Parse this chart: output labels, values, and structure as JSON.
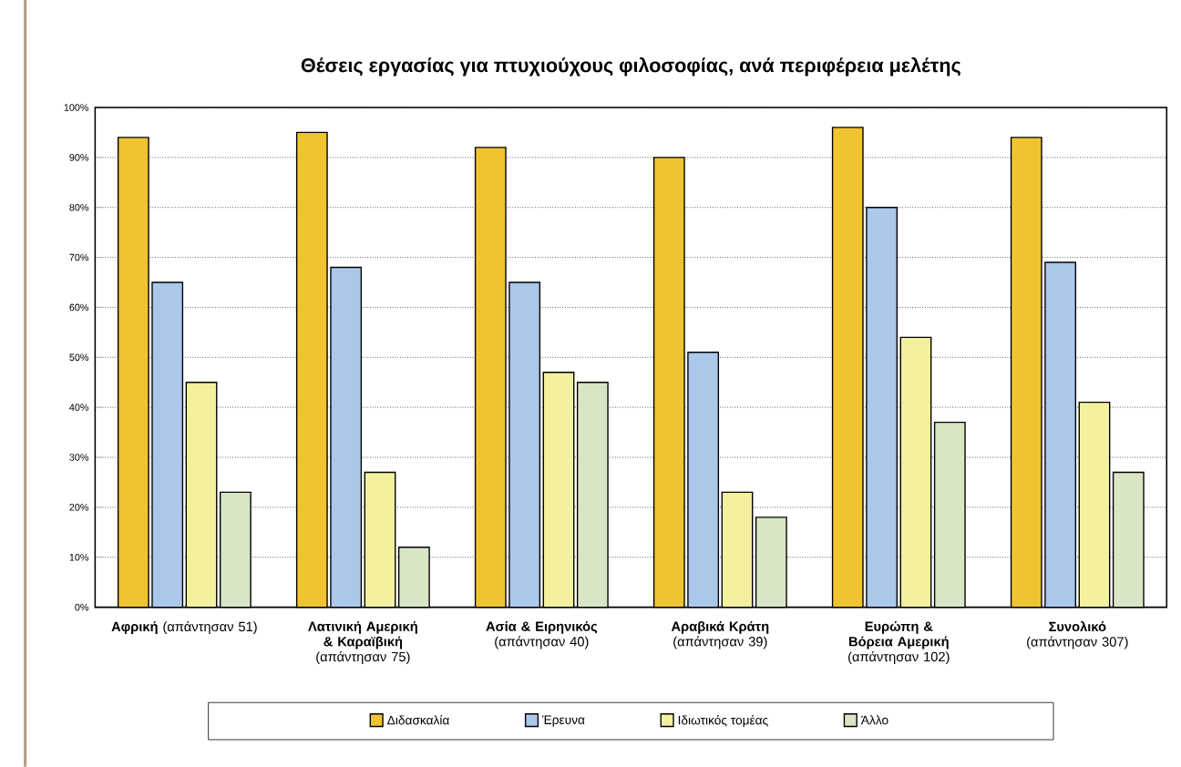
{
  "chart_data": {
    "type": "bar",
    "title": "Θέσεις εργασίας για πτυχιούχους φιλοσοφίας, ανά περιφέρεια μελέτης",
    "categories": [
      "**Αφρική** (απάντησαν 51)",
      "**Λατινική Αμερική & Καραϊβική** (απάντησαν 75)",
      "**Ασία & Ειρηνικός** (απάντησαν 40)",
      "**Αραβικά Κράτη** (απάντησαν 39)",
      "**Ευρώπη & Βόρεια Αμερική** (απάντησαν 102)",
      "**Συνολικό** (απάντησαν 307)"
    ],
    "series": [
      {
        "name": "Διδασκαλία",
        "color": "#f0c430",
        "values": [
          94,
          95,
          92,
          90,
          96,
          94
        ]
      },
      {
        "name": "Έρευνα",
        "color": "#abc8ea",
        "values": [
          65,
          68,
          65,
          51,
          80,
          69
        ]
      },
      {
        "name": "Ιδιωτικός τομέας",
        "color": "#f3f09e",
        "values": [
          45,
          27,
          47,
          23,
          54,
          41
        ]
      },
      {
        "name": "Άλλο",
        "color": "#d9e6c6",
        "values": [
          23,
          12,
          45,
          18,
          37,
          27
        ]
      }
    ],
    "ylim": [
      0,
      100
    ],
    "yticks": [
      {
        "value": 0,
        "label": "0%"
      },
      {
        "value": 10,
        "label": "10%"
      },
      {
        "value": 20,
        "label": "20%"
      },
      {
        "value": 30,
        "label": "30%"
      },
      {
        "value": 40,
        "label": "40%"
      },
      {
        "value": 50,
        "label": "50%"
      },
      {
        "value": 60,
        "label": "60%"
      },
      {
        "value": 70,
        "label": "70%"
      },
      {
        "value": 80,
        "label": "80%"
      },
      {
        "value": 90,
        "label": "90%"
      },
      {
        "value": 100,
        "label": "100%"
      }
    ],
    "grid": "y",
    "legend": "bottom"
  }
}
